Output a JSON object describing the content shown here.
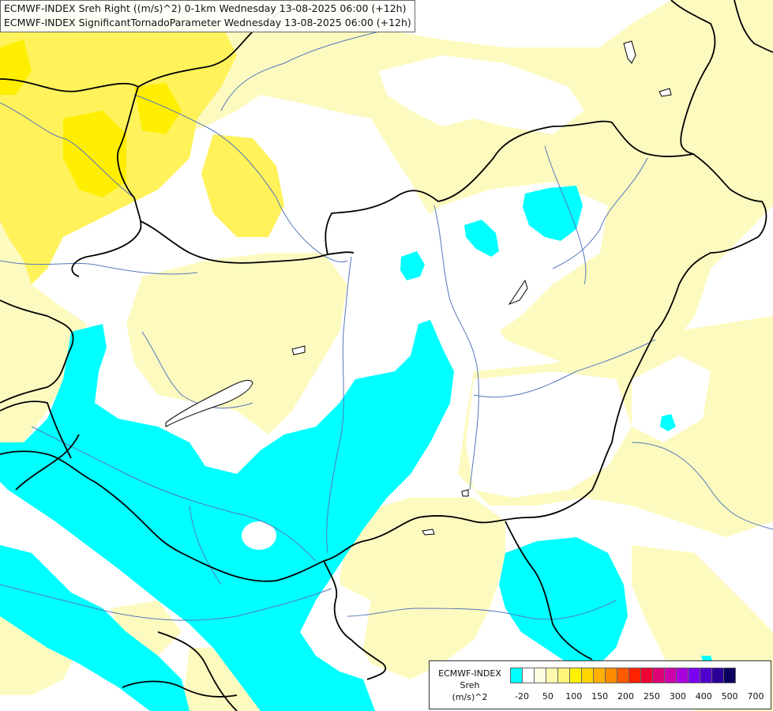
{
  "header": {
    "line1": "ECMWF-INDEX Sreh Right ((m/s)^2) 0-1km Wednesday 13-08-2025 06:00 (+12h)",
    "line2": "ECMWF-INDEX SignificantTornadoParameter Wednesday 13-08-2025 06:00 (+12h)"
  },
  "legend": {
    "line1": "ECMWF-INDEX",
    "line2": "Sreh",
    "line3": "(m/s)^2",
    "colors": [
      "#00ffff",
      "#ffffff",
      "#fffde0",
      "#fff9b0",
      "#fff47a",
      "#fff000",
      "#ffd400",
      "#ffb000",
      "#ff8a00",
      "#ff5a00",
      "#ff2200",
      "#ee0033",
      "#dd0077",
      "#cc00aa",
      "#aa00dd",
      "#7a00ee",
      "#5000cc",
      "#2a0099",
      "#0c0060"
    ],
    "ticks": [
      "-20",
      "50",
      "100",
      "150",
      "200",
      "250",
      "300",
      "400",
      "500",
      "700"
    ]
  },
  "map": {
    "fill_colors": {
      "cyan": "#00ffff",
      "pale_yellow": "#fdfac0",
      "yellow": "#fff25a",
      "bright_yellow": "#ffee00",
      "white": "#ffffff"
    },
    "border_color": "#000000",
    "river_color": "#5577bb"
  }
}
